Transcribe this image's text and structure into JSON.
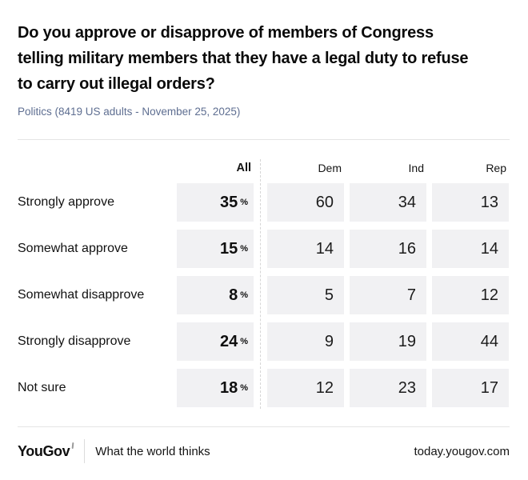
{
  "header": {
    "title_lines": [
      "Do you approve or disapprove of members of Congress",
      "telling military members that they have a legal duty to refuse",
      "to carry out illegal orders?"
    ],
    "subtitle": "Politics (8419 US adults - November 25, 2025)"
  },
  "table": {
    "col_all": "All",
    "col_dem": "Dem",
    "col_ind": "Ind",
    "col_rep": "Rep",
    "percent_sign": "%",
    "rows": [
      {
        "label": "Strongly approve",
        "all": "35",
        "dem": "60",
        "ind": "34",
        "rep": "13"
      },
      {
        "label": "Somewhat approve",
        "all": "15",
        "dem": "14",
        "ind": "16",
        "rep": "14"
      },
      {
        "label": "Somewhat disapprove",
        "all": "8",
        "dem": "5",
        "ind": "7",
        "rep": "12"
      },
      {
        "label": "Strongly disapprove",
        "all": "24",
        "dem": "9",
        "ind": "19",
        "rep": "44"
      },
      {
        "label": "Not sure",
        "all": "18",
        "dem": "12",
        "ind": "23",
        "rep": "17"
      }
    ]
  },
  "footer": {
    "logo_text": "YouGov",
    "tagline": "What the world thinks",
    "url": "today.yougov.com"
  },
  "colors": {
    "background": "#ffffff",
    "title_text": "#0a0a0a",
    "subtitle_text": "#5e6e91",
    "cell_background": "#f1f1f3",
    "divider": "#e4e4e4",
    "dashed_separator": "#d6d6d6",
    "body_text": "#111111"
  },
  "chart_data": {
    "type": "table",
    "title": "Do you approve or disapprove of members of Congress telling military members that they have a legal duty to refuse to carry out illegal orders?",
    "subtitle": "Politics (8419 US adults - November 25, 2025)",
    "columns": [
      "All",
      "Dem",
      "Ind",
      "Rep"
    ],
    "categories": [
      "Strongly approve",
      "Somewhat approve",
      "Somewhat disapprove",
      "Strongly disapprove",
      "Not sure"
    ],
    "series": [
      {
        "name": "All",
        "unit": "%",
        "values": [
          35,
          15,
          8,
          24,
          18
        ]
      },
      {
        "name": "Dem",
        "values": [
          60,
          14,
          5,
          9,
          12
        ]
      },
      {
        "name": "Ind",
        "values": [
          34,
          16,
          7,
          19,
          23
        ]
      },
      {
        "name": "Rep",
        "values": [
          13,
          14,
          12,
          44,
          17
        ]
      }
    ]
  }
}
